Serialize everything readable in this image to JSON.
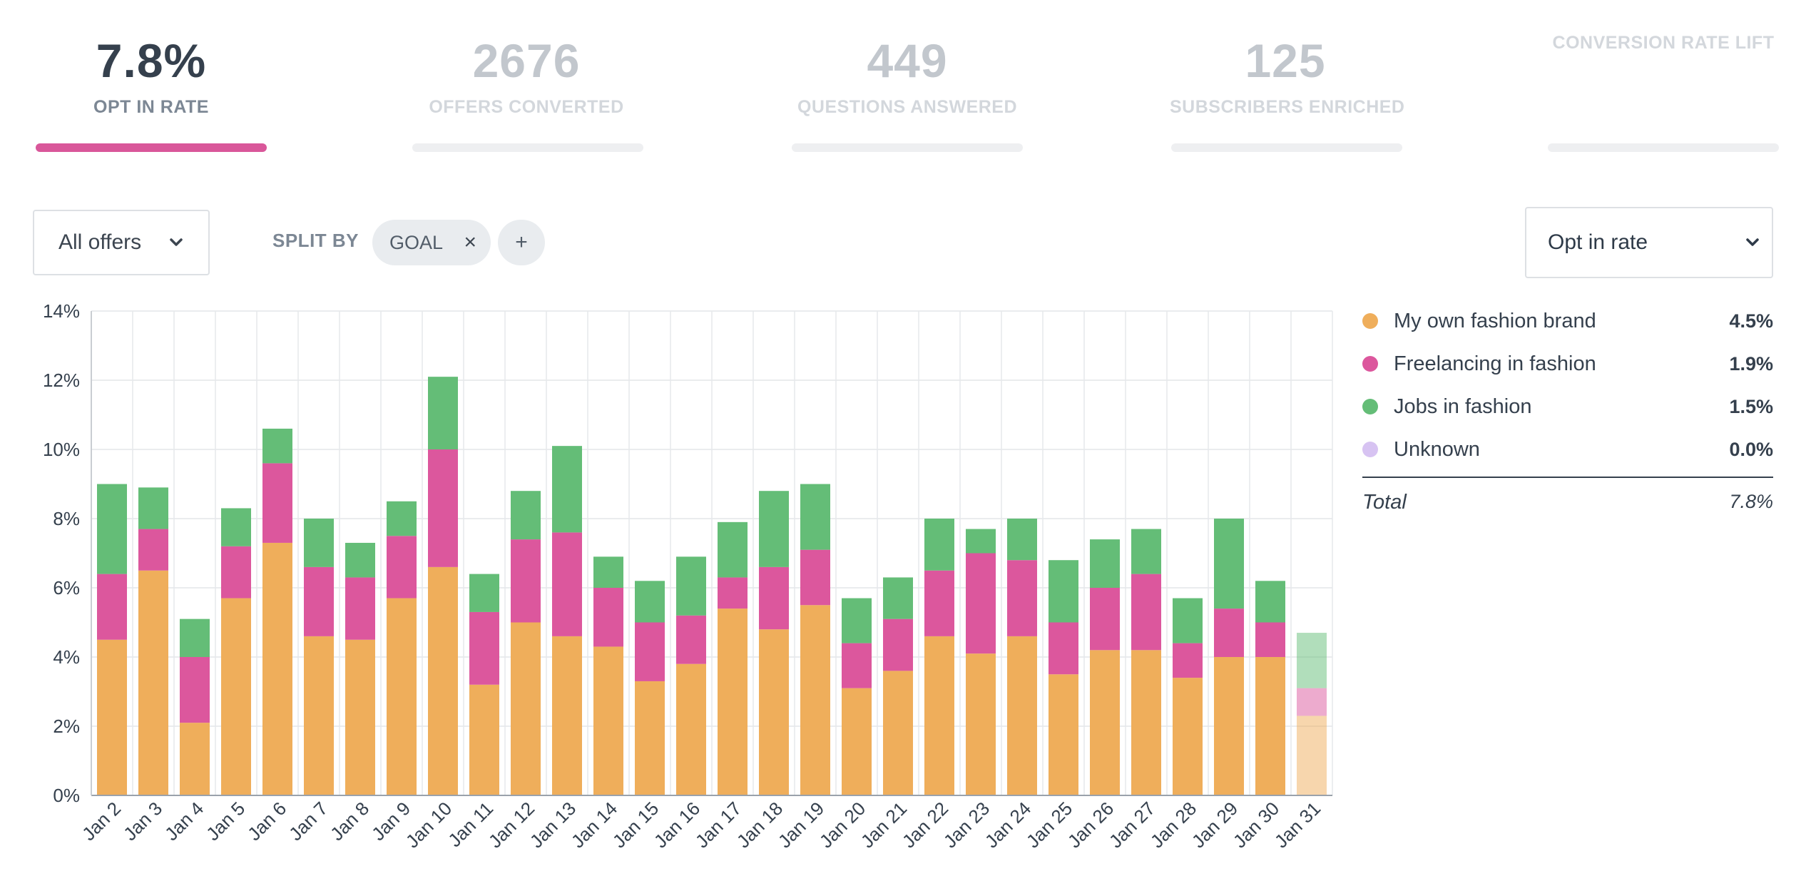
{
  "kpis": [
    {
      "value": "7.8%",
      "label": "OPT IN RATE",
      "active": true
    },
    {
      "value": "2676",
      "label": "OFFERS CONVERTED",
      "active": false
    },
    {
      "value": "449",
      "label": "QUESTIONS ANSWERED",
      "active": false
    },
    {
      "value": "125",
      "label": "SUBSCRIBERS ENRICHED",
      "active": false
    },
    {
      "value": "",
      "label": "CONVERSION RATE LIFT",
      "active": false
    }
  ],
  "filters": {
    "offers_select": "All offers",
    "split_by_label": "SPLIT BY",
    "split_chip": "GOAL",
    "chip_remove": "×",
    "add_split": "+",
    "metric_select": "Opt in rate"
  },
  "legend": {
    "items": [
      {
        "name": "My own fashion brand",
        "value": "4.5%",
        "color": "#efae5b"
      },
      {
        "name": "Freelancing in fashion",
        "value": "1.9%",
        "color": "#dc579d"
      },
      {
        "name": "Jobs in fashion",
        "value": "1.5%",
        "color": "#64bd77"
      },
      {
        "name": "Unknown",
        "value": "0.0%",
        "color": "#d7c3f2"
      }
    ],
    "total_label": "Total",
    "total_value": "7.8%"
  },
  "chart_data": {
    "type": "bar",
    "stacked": true,
    "categories": [
      "Jan 2",
      "Jan 3",
      "Jan 4",
      "Jan 5",
      "Jan 6",
      "Jan 7",
      "Jan 8",
      "Jan 9",
      "Jan 10",
      "Jan 11",
      "Jan 12",
      "Jan 13",
      "Jan 14",
      "Jan 15",
      "Jan 16",
      "Jan 17",
      "Jan 18",
      "Jan 19",
      "Jan 20",
      "Jan 21",
      "Jan 22",
      "Jan 23",
      "Jan 24",
      "Jan 25",
      "Jan 26",
      "Jan 27",
      "Jan 28",
      "Jan 29",
      "Jan 30",
      "Jan 31"
    ],
    "series": [
      {
        "name": "My own fashion brand",
        "color": "#efae5b",
        "values": [
          4.5,
          6.5,
          2.1,
          5.7,
          7.3,
          4.6,
          4.5,
          5.7,
          6.6,
          3.2,
          5.0,
          4.6,
          4.3,
          3.3,
          3.8,
          5.4,
          4.8,
          5.5,
          3.1,
          3.6,
          4.6,
          4.1,
          4.6,
          3.5,
          4.2,
          4.2,
          3.4,
          4.0,
          4.0,
          2.3
        ]
      },
      {
        "name": "Freelancing in fashion",
        "color": "#dc579d",
        "values": [
          1.9,
          1.2,
          1.9,
          1.5,
          2.3,
          2.0,
          1.8,
          1.8,
          3.4,
          2.1,
          2.4,
          3.0,
          1.7,
          1.7,
          1.4,
          0.9,
          1.8,
          1.6,
          1.3,
          1.5,
          1.9,
          2.9,
          2.2,
          1.5,
          1.8,
          2.2,
          1.0,
          1.4,
          1.0,
          0.8
        ]
      },
      {
        "name": "Jobs in fashion",
        "color": "#64bd77",
        "values": [
          2.6,
          1.2,
          1.1,
          1.1,
          1.0,
          1.4,
          1.0,
          1.0,
          2.1,
          1.1,
          1.4,
          2.5,
          0.9,
          1.2,
          1.7,
          1.6,
          2.2,
          1.9,
          1.3,
          1.2,
          1.5,
          0.7,
          1.2,
          1.8,
          1.4,
          1.3,
          1.3,
          2.6,
          1.2,
          1.6
        ]
      },
      {
        "name": "Unknown",
        "color": "#d7c3f2",
        "values": [
          0,
          0,
          0,
          0,
          0,
          0,
          0,
          0,
          0,
          0,
          0,
          0,
          0,
          0,
          0,
          0,
          0,
          0,
          0,
          0,
          0,
          0,
          0,
          0,
          0,
          0,
          0,
          0,
          0,
          0
        ]
      }
    ],
    "partial_last": true,
    "yticks": [
      "0%",
      "2%",
      "4%",
      "6%",
      "8%",
      "10%",
      "12%",
      "14%"
    ],
    "ylim": [
      0,
      14
    ],
    "grid": true
  }
}
